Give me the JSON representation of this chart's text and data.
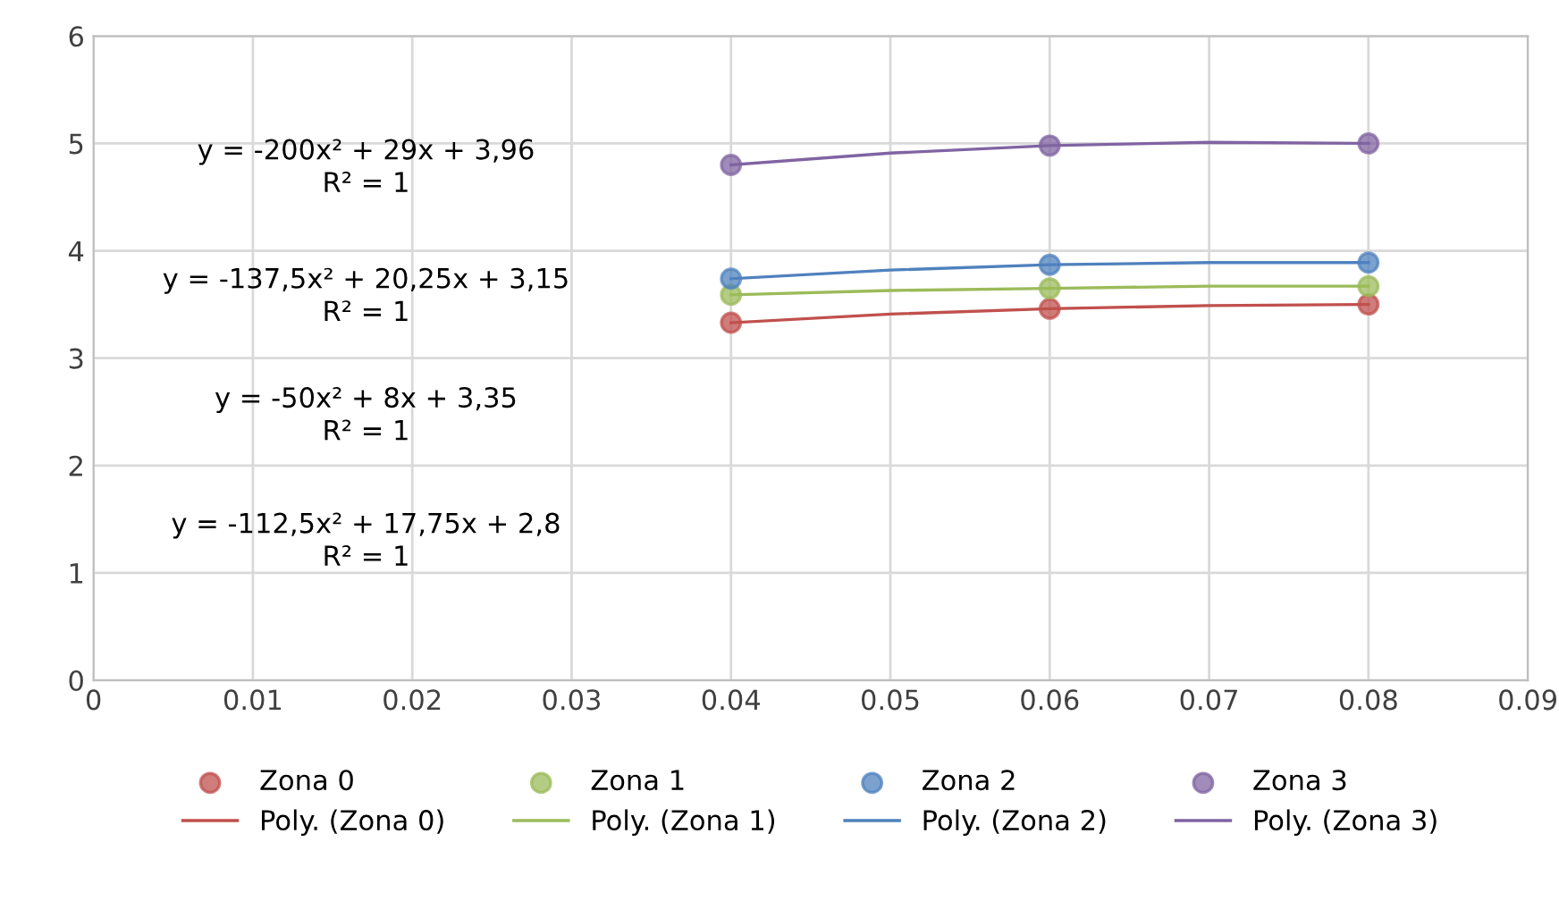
{
  "chart_data": {
    "type": "scatter",
    "xlim": [
      0,
      0.09
    ],
    "xticks": [
      {
        "value": 0,
        "label": "0"
      },
      0.01,
      0.02,
      0.03,
      0.04,
      0.05,
      0.06,
      0.07,
      0.08,
      0.09
    ],
    "ylim": [
      0,
      6
    ],
    "yticks": [
      0,
      1,
      2,
      3,
      4,
      5,
      6
    ],
    "grid": true,
    "legend": "bottom",
    "line_style": "solid",
    "annotations": [
      "y = -200x² + 29x + 3,96\nR² = 1",
      "y = -137,5x² + 20,25x + 3,15\nR² = 1",
      "y = -50x² + 8x + 3,35\nR² = 1",
      "y = -112,5x² + 17,75x + 2,8\nR² = 1"
    ],
    "series": [
      {
        "name": "Zona 0",
        "marker": "circle",
        "color": "#c0504d",
        "x": [
          0.04,
          0.06,
          0.08
        ],
        "values": [
          3.33,
          3.46,
          3.5
        ]
      },
      {
        "name": "Poly. (Zona 0)",
        "type": "line",
        "marker": "none",
        "color": "#c0504d",
        "x": [
          0.04,
          0.05,
          0.06,
          0.07,
          0.08
        ],
        "values": [
          3.33,
          3.41,
          3.46,
          3.49,
          3.5
        ]
      },
      {
        "name": "Zona 1",
        "marker": "circle",
        "color": "#9bbb59",
        "x": [
          0.04,
          0.06,
          0.08
        ],
        "values": [
          3.59,
          3.65,
          3.67
        ]
      },
      {
        "name": "Poly. (Zona 1)",
        "type": "line",
        "marker": "none",
        "color": "#9bbb59",
        "x": [
          0.04,
          0.05,
          0.06,
          0.07,
          0.08
        ],
        "values": [
          3.59,
          3.63,
          3.65,
          3.67,
          3.67
        ]
      },
      {
        "name": "Zona 2",
        "marker": "circle",
        "color": "#4f81bd",
        "x": [
          0.04,
          0.06,
          0.08
        ],
        "values": [
          3.74,
          3.87,
          3.89
        ]
      },
      {
        "name": "Poly. (Zona 2)",
        "type": "line",
        "marker": "none",
        "color": "#4f81bd",
        "x": [
          0.04,
          0.05,
          0.06,
          0.07,
          0.08
        ],
        "values": [
          3.74,
          3.82,
          3.87,
          3.89,
          3.89
        ]
      },
      {
        "name": "Zona 3",
        "marker": "circle",
        "color": "#8064a2",
        "x": [
          0.04,
          0.06,
          0.08
        ],
        "values": [
          4.8,
          4.98,
          5.0
        ]
      },
      {
        "name": "Poly. (Zona 3)",
        "type": "line",
        "marker": "none",
        "color": "#8064a2",
        "x": [
          0.04,
          0.05,
          0.06,
          0.07,
          0.08
        ],
        "values": [
          4.8,
          4.91,
          4.98,
          5.01,
          5.0
        ]
      }
    ]
  }
}
